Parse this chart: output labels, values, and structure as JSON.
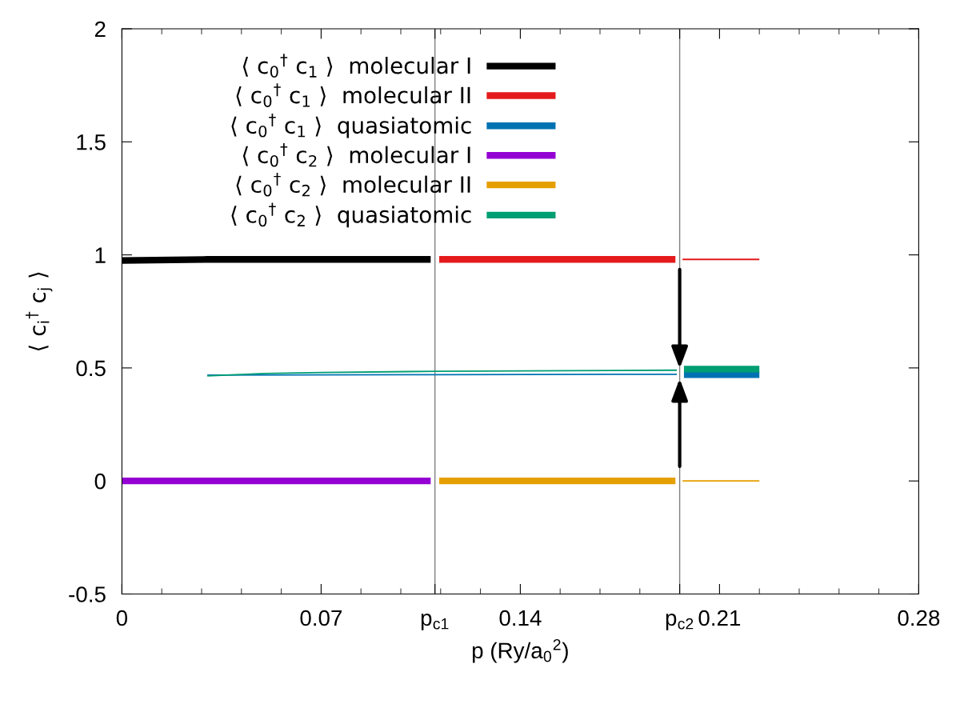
{
  "chart_data": {
    "type": "line",
    "xlabel": "p (Ry/a$_{0}$$^{2}$)",
    "ylabel": "⟨ c$_{i}$$^{†}$ c$_{j}$ ⟩",
    "xlim": [
      0,
      0.28
    ],
    "ylim": [
      -0.5,
      2
    ],
    "xticks": [
      0,
      0.07,
      {
        "value": 0.11,
        "label": "p$_{c1}$"
      },
      0.14,
      {
        "value": 0.196,
        "label": "p$_{c2}$"
      },
      0.21,
      0.28
    ],
    "yticks": [
      -0.5,
      0,
      0.5,
      1,
      1.5,
      2
    ],
    "legend": "top left",
    "grid": false,
    "marker": "none",
    "line_style": "solid",
    "ref_lines": [
      {
        "axis": "x",
        "value": 0.11,
        "color": "#808080"
      },
      {
        "axis": "x",
        "value": 0.196,
        "color": "#808080"
      }
    ],
    "series": [
      {
        "name": "⟨ c$_{0}$$^{†}$ c$_{1}$ ⟩  molecular I",
        "color": "#000000",
        "x": [
          0,
          0.03,
          0.07,
          0.1085
        ],
        "values": [
          0.975,
          0.98,
          0.98,
          0.98
        ]
      },
      {
        "name": "⟨ c$_{0}$$^{†}$ c$_{1}$ ⟩  molecular II",
        "color": "#e41a1c",
        "x": [
          0.1115,
          0.1945
        ],
        "values": [
          0.98,
          0.98
        ]
      },
      {
        "name": "⟨ c$_{0}$$^{†}$ c$_{1}$ ⟩  quasiatomic",
        "color": "#0072b2",
        "x": [
          0.1975,
          0.224
        ],
        "values": [
          0.47,
          0.47
        ]
      },
      {
        "name": "⟨ c$_{0}$$^{†}$ c$_{2}$ ⟩  molecular I",
        "color": "#9400d3",
        "x": [
          0,
          0.1085
        ],
        "values": [
          0,
          0
        ]
      },
      {
        "name": "⟨ c$_{0}$$^{†}$ c$_{2}$ ⟩  molecular II",
        "color": "#e69f00",
        "x": [
          0.1115,
          0.1945
        ],
        "values": [
          0,
          0
        ]
      },
      {
        "name": "⟨ c$_{0}$$^{†}$ c$_{2}$ ⟩  quasiatomic",
        "color": "#009e73",
        "x": [
          0.1975,
          0.224
        ],
        "values": [
          0.495,
          0.495
        ]
      },
      {
        "color": "#e41a1c",
        "x": [
          0.197,
          0.224
        ],
        "values": [
          0.98,
          0.98
        ]
      },
      {
        "color": "#e69f00",
        "x": [
          0.197,
          0.224
        ],
        "values": [
          0,
          0
        ]
      },
      {
        "color": "#0072b2",
        "x": [
          0.03,
          0.11,
          0.195
        ],
        "values": [
          0.468,
          0.47,
          0.472
        ]
      },
      {
        "color": "#009e73",
        "x": [
          0.03,
          0.05,
          0.07,
          0.11,
          0.195
        ],
        "values": [
          0.465,
          0.475,
          0.48,
          0.485,
          0.49
        ]
      }
    ]
  }
}
